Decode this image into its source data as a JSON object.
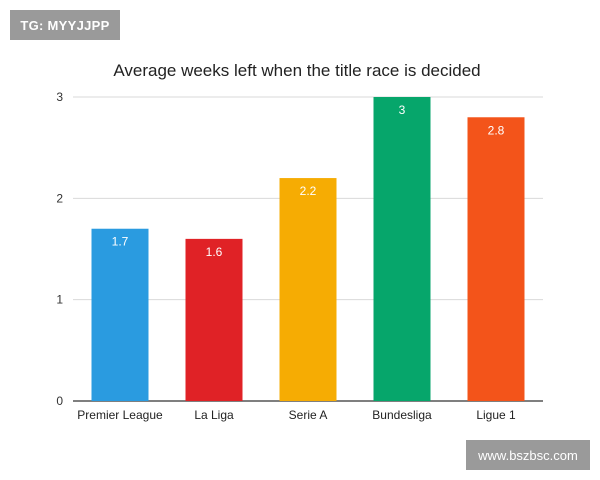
{
  "watermarks": {
    "top_left": "TG: MYYJJPP",
    "bottom_right": "www.bszbsc.com"
  },
  "chart_data": {
    "type": "bar",
    "title": "Average weeks left when the title race is decided",
    "xlabel": "",
    "ylabel": "",
    "categories": [
      "Premier League",
      "La Liga",
      "Serie A",
      "Bundesliga",
      "Ligue 1"
    ],
    "values": [
      1.7,
      1.6,
      2.2,
      3,
      2.8
    ],
    "data_labels": [
      "1.7",
      "1.6",
      "2.2",
      "3",
      "2.8"
    ],
    "bar_colors": [
      "#2a9be0",
      "#e02226",
      "#f6ac03",
      "#06a66b",
      "#f3541a"
    ],
    "ylim": [
      0,
      3
    ],
    "yticks": [
      "0",
      "1",
      "2",
      "3"
    ],
    "grid": true,
    "legend": "none"
  }
}
